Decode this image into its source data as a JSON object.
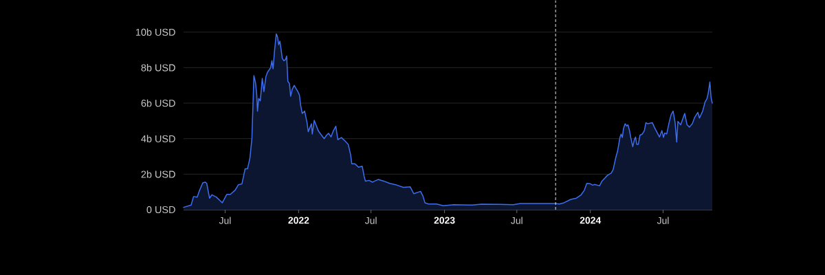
{
  "chart_data": {
    "type": "area",
    "x": [
      "2021-03-19",
      "2021-04-07",
      "2021-04-13",
      "2021-04-22",
      "2021-04-27",
      "2021-05-06",
      "2021-05-12",
      "2021-05-16",
      "2021-05-23",
      "2021-05-29",
      "2021-06-09",
      "2021-06-24",
      "2021-07-05",
      "2021-07-14",
      "2021-07-26",
      "2021-08-03",
      "2021-08-12",
      "2021-08-20",
      "2021-08-26",
      "2021-09-01",
      "2021-09-06",
      "2021-09-11",
      "2021-09-15",
      "2021-09-18",
      "2021-09-20",
      "2021-09-23",
      "2021-09-27",
      "2021-10-02",
      "2021-10-06",
      "2021-10-11",
      "2021-10-15",
      "2021-10-19",
      "2021-10-23",
      "2021-10-26",
      "2021-10-29",
      "2021-11-02",
      "2021-11-06",
      "2021-11-09",
      "2021-11-12",
      "2021-11-15",
      "2021-11-18",
      "2021-11-21",
      "2021-11-25",
      "2021-11-29",
      "2021-12-02",
      "2021-12-05",
      "2021-12-09",
      "2021-12-12",
      "2021-12-16",
      "2021-12-21",
      "2021-12-25",
      "2021-12-30",
      "2022-01-03",
      "2022-01-06",
      "2022-01-10",
      "2022-01-16",
      "2022-01-22",
      "2022-01-25",
      "2022-02-02",
      "2022-02-04",
      "2022-02-09",
      "2022-02-19",
      "2022-02-25",
      "2022-03-06",
      "2022-03-12",
      "2022-03-17",
      "2022-03-23",
      "2022-03-29",
      "2022-04-04",
      "2022-04-09",
      "2022-04-18",
      "2022-04-27",
      "2022-05-05",
      "2022-05-11",
      "2022-05-14",
      "2022-05-22",
      "2022-05-31",
      "2022-06-09",
      "2022-06-14",
      "2022-06-17",
      "2022-06-26",
      "2022-07-05",
      "2022-07-10",
      "2022-07-19",
      "2022-08-02",
      "2022-08-17",
      "2022-09-03",
      "2022-09-20",
      "2022-10-07",
      "2022-10-16",
      "2022-11-02",
      "2022-11-08",
      "2022-11-13",
      "2022-11-22",
      "2022-12-12",
      "2022-12-29",
      "2023-01-24",
      "2023-03-11",
      "2023-04-03",
      "2023-05-19",
      "2023-06-22",
      "2023-07-10",
      "2023-09-05",
      "2023-10-06",
      "2023-10-15",
      "2023-10-27",
      "2023-11-13",
      "2023-11-27",
      "2023-12-09",
      "2023-12-17",
      "2023-12-23",
      "2024-01-01",
      "2024-01-07",
      "2024-01-12",
      "2024-01-18",
      "2024-01-24",
      "2024-01-30",
      "2024-02-13",
      "2024-02-22",
      "2024-02-27",
      "2024-03-05",
      "2024-03-09",
      "2024-03-15",
      "2024-03-18",
      "2024-03-21",
      "2024-03-24",
      "2024-03-28",
      "2024-04-01",
      "2024-04-04",
      "2024-04-08",
      "2024-04-11",
      "2024-04-16",
      "2024-04-20",
      "2024-04-23",
      "2024-04-26",
      "2024-04-30",
      "2024-05-04",
      "2024-05-10",
      "2024-05-15",
      "2024-05-19",
      "2024-05-23",
      "2024-05-29",
      "2024-06-04",
      "2024-06-09",
      "2024-06-15",
      "2024-06-22",
      "2024-06-28",
      "2024-07-02",
      "2024-07-05",
      "2024-07-10",
      "2024-07-16",
      "2024-07-21",
      "2024-07-26",
      "2024-07-31",
      "2024-08-04",
      "2024-08-07",
      "2024-08-14",
      "2024-08-24",
      "2024-08-30",
      "2024-09-05",
      "2024-09-12",
      "2024-09-18",
      "2024-09-26",
      "2024-09-30",
      "2024-10-08",
      "2024-10-14",
      "2024-10-19",
      "2024-10-22",
      "2024-10-26",
      "2024-10-29",
      "2024-11-01"
    ],
    "values": [
      0.13,
      0.26,
      0.74,
      0.71,
      1.03,
      1.51,
      1.55,
      1.48,
      0.65,
      0.84,
      0.71,
      0.39,
      0.86,
      0.86,
      1.1,
      1.4,
      1.45,
      2.3,
      2.3,
      2.9,
      4.0,
      7.55,
      7.16,
      6.52,
      5.55,
      6.26,
      6.13,
      7.39,
      6.65,
      7.48,
      7.74,
      7.87,
      8.0,
      8.39,
      7.94,
      9.03,
      9.9,
      9.74,
      9.29,
      9.49,
      9.03,
      8.52,
      8.39,
      8.45,
      8.65,
      7.23,
      7.1,
      6.39,
      6.78,
      7.0,
      6.84,
      6.65,
      6.45,
      5.87,
      5.42,
      5.55,
      4.9,
      4.39,
      4.84,
      4.26,
      5.03,
      4.45,
      4.26,
      4.0,
      4.2,
      4.3,
      4.1,
      4.45,
      4.7,
      3.94,
      4.06,
      3.87,
      3.68,
      3.1,
      2.58,
      2.58,
      2.39,
      2.45,
      1.87,
      1.61,
      1.65,
      1.55,
      1.61,
      1.7,
      1.61,
      1.48,
      1.39,
      1.26,
      1.29,
      0.9,
      1.03,
      0.77,
      0.39,
      0.32,
      0.32,
      0.22,
      0.28,
      0.26,
      0.31,
      0.3,
      0.28,
      0.35,
      0.35,
      0.35,
      0.32,
      0.39,
      0.58,
      0.65,
      0.84,
      1.1,
      1.48,
      1.46,
      1.38,
      1.42,
      1.38,
      1.35,
      1.61,
      1.94,
      2.06,
      2.26,
      2.97,
      3.29,
      4.07,
      4.26,
      4.07,
      4.58,
      4.84,
      4.71,
      4.78,
      4.45,
      4.07,
      3.55,
      3.94,
      4.09,
      3.68,
      3.68,
      4.19,
      4.26,
      4.45,
      4.9,
      4.84,
      4.87,
      4.9,
      4.65,
      4.39,
      4.09,
      4.45,
      4.07,
      4.32,
      4.26,
      4.9,
      5.35,
      5.55,
      4.9,
      3.81,
      4.97,
      4.78,
      5.42,
      4.78,
      4.65,
      4.84,
      5.2,
      5.48,
      5.16,
      5.55,
      6.06,
      6.26,
      6.58,
      7.19,
      6.32,
      6.0
    ],
    "color": "#3d6ef2",
    "xlim": [
      "2021-03-19",
      "2024-11-01"
    ],
    "xticks": [
      {
        "value": "2021-07-01",
        "label": "Jul"
      },
      {
        "value": "2022-01-01",
        "label": "2022"
      },
      {
        "value": "2022-07-01",
        "label": "Jul"
      },
      {
        "value": "2023-01-01",
        "label": "2023"
      },
      {
        "value": "2023-07-01",
        "label": "Jul"
      },
      {
        "value": "2024-01-01",
        "label": "2024"
      },
      {
        "value": "2024-07-01",
        "label": "Jul"
      }
    ],
    "ylim": [
      0,
      10
    ],
    "yticks": [
      {
        "value": 0,
        "label": "0 USD"
      },
      {
        "value": 2,
        "label": "2b USD"
      },
      {
        "value": 4,
        "label": "4b USD"
      },
      {
        "value": 6,
        "label": "6b USD"
      },
      {
        "value": 8,
        "label": "8b USD"
      },
      {
        "value": 10,
        "label": "10b USD"
      }
    ],
    "grid": "y",
    "ref_lines": [
      {
        "axis": "x",
        "value": "2023-10-06",
        "color": "#e6e6e6",
        "line_style": "dashed"
      }
    ]
  }
}
